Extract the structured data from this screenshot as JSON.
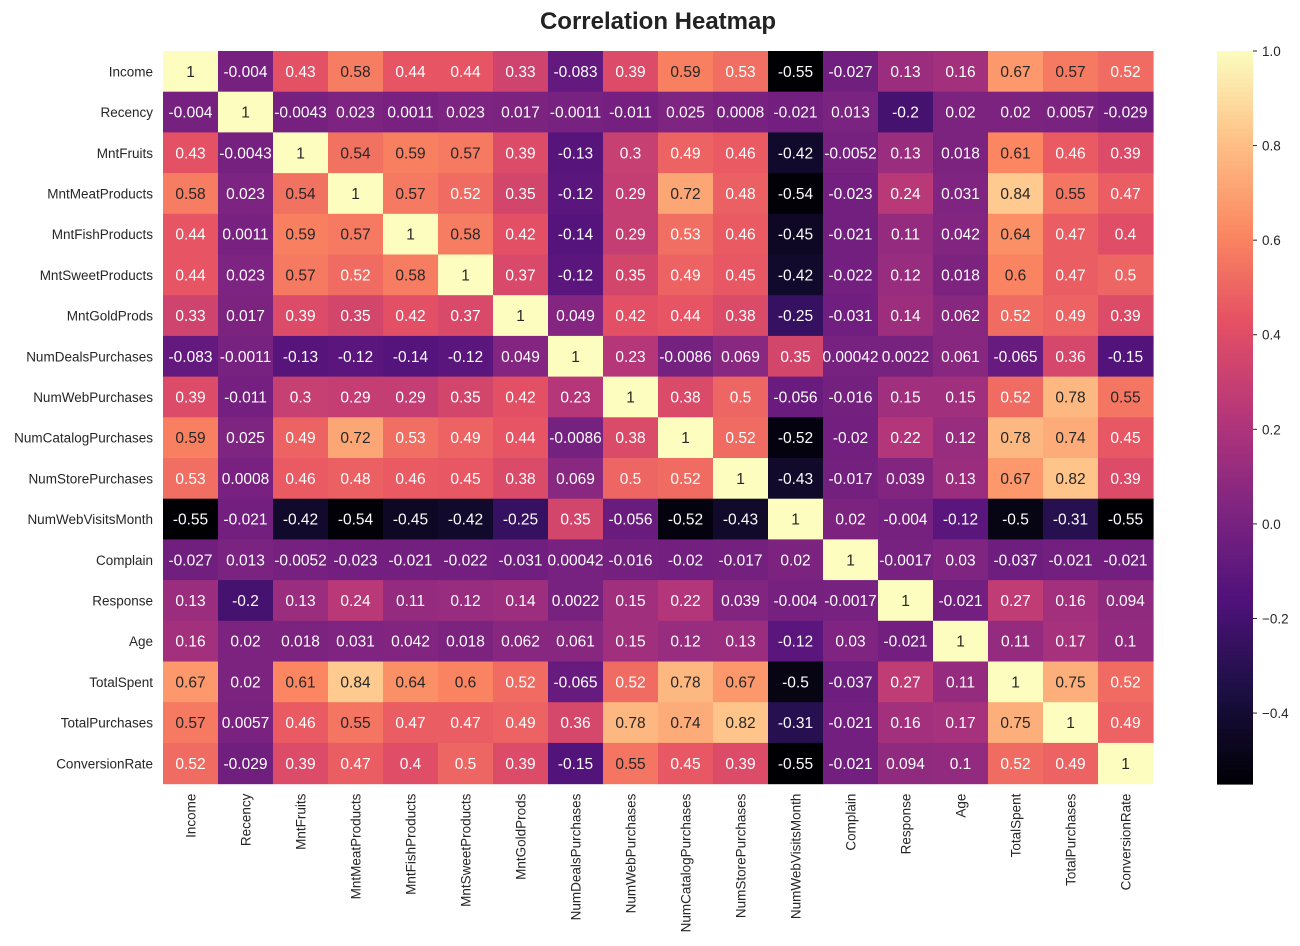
{
  "chart_data": {
    "type": "heatmap",
    "title": "Correlation Heatmap",
    "colormap": "magma",
    "vmin": -0.55,
    "vmax": 1,
    "colorbar_ticks": [
      "1.0",
      "0.8",
      "0.6",
      "0.4",
      "0.2",
      "0.0",
      "−0.2",
      "−0.4"
    ],
    "colorbar_tick_values": [
      1.0,
      0.8,
      0.6,
      0.4,
      0.2,
      0.0,
      -0.2,
      -0.4
    ],
    "labels": [
      "Income",
      "Recency",
      "MntFruits",
      "MntMeatProducts",
      "MntFishProducts",
      "MntSweetProducts",
      "MntGoldProds",
      "NumDealsPurchases",
      "NumWebPurchases",
      "NumCatalogPurchases",
      "NumStorePurchases",
      "NumWebVisitsMonth",
      "Complain",
      "Response",
      "Age",
      "TotalSpent",
      "TotalPurchases",
      "ConversionRate"
    ],
    "matrix": [
      [
        "1",
        "-0.004",
        "0.43",
        "0.58",
        "0.44",
        "0.44",
        "0.33",
        "-0.083",
        "0.39",
        "0.59",
        "0.53",
        "-0.55",
        "-0.027",
        "0.13",
        "0.16",
        "0.67",
        "0.57",
        "0.52"
      ],
      [
        "-0.004",
        "1",
        "-0.0043",
        "0.023",
        "0.0011",
        "0.023",
        "0.017",
        "-0.0011",
        "-0.011",
        "0.025",
        "0.0008",
        "-0.021",
        "0.013",
        "-0.2",
        "0.02",
        "0.02",
        "0.0057",
        "-0.029"
      ],
      [
        "0.43",
        "-0.0043",
        "1",
        "0.54",
        "0.59",
        "0.57",
        "0.39",
        "-0.13",
        "0.3",
        "0.49",
        "0.46",
        "-0.42",
        "-0.0052",
        "0.13",
        "0.018",
        "0.61",
        "0.46",
        "0.39"
      ],
      [
        "0.58",
        "0.023",
        "0.54",
        "1",
        "0.57",
        "0.52",
        "0.35",
        "-0.12",
        "0.29",
        "0.72",
        "0.48",
        "-0.54",
        "-0.023",
        "0.24",
        "0.031",
        "0.84",
        "0.55",
        "0.47"
      ],
      [
        "0.44",
        "0.0011",
        "0.59",
        "0.57",
        "1",
        "0.58",
        "0.42",
        "-0.14",
        "0.29",
        "0.53",
        "0.46",
        "-0.45",
        "-0.021",
        "0.11",
        "0.042",
        "0.64",
        "0.47",
        "0.4"
      ],
      [
        "0.44",
        "0.023",
        "0.57",
        "0.52",
        "0.58",
        "1",
        "0.37",
        "-0.12",
        "0.35",
        "0.49",
        "0.45",
        "-0.42",
        "-0.022",
        "0.12",
        "0.018",
        "0.6",
        "0.47",
        "0.5"
      ],
      [
        "0.33",
        "0.017",
        "0.39",
        "0.35",
        "0.42",
        "0.37",
        "1",
        "0.049",
        "0.42",
        "0.44",
        "0.38",
        "-0.25",
        "-0.031",
        "0.14",
        "0.062",
        "0.52",
        "0.49",
        "0.39"
      ],
      [
        "-0.083",
        "-0.0011",
        "-0.13",
        "-0.12",
        "-0.14",
        "-0.12",
        "0.049",
        "1",
        "0.23",
        "-0.0086",
        "0.069",
        "0.35",
        "0.00042",
        "0.0022",
        "0.061",
        "-0.065",
        "0.36",
        "-0.15"
      ],
      [
        "0.39",
        "-0.011",
        "0.3",
        "0.29",
        "0.29",
        "0.35",
        "0.42",
        "0.23",
        "1",
        "0.38",
        "0.5",
        "-0.056",
        "-0.016",
        "0.15",
        "0.15",
        "0.52",
        "0.78",
        "0.55"
      ],
      [
        "0.59",
        "0.025",
        "0.49",
        "0.72",
        "0.53",
        "0.49",
        "0.44",
        "-0.0086",
        "0.38",
        "1",
        "0.52",
        "-0.52",
        "-0.02",
        "0.22",
        "0.12",
        "0.78",
        "0.74",
        "0.45"
      ],
      [
        "0.53",
        "0.0008",
        "0.46",
        "0.48",
        "0.46",
        "0.45",
        "0.38",
        "0.069",
        "0.5",
        "0.52",
        "1",
        "-0.43",
        "-0.017",
        "0.039",
        "0.13",
        "0.67",
        "0.82",
        "0.39"
      ],
      [
        "-0.55",
        "-0.021",
        "-0.42",
        "-0.54",
        "-0.45",
        "-0.42",
        "-0.25",
        "0.35",
        "-0.056",
        "-0.52",
        "-0.43",
        "1",
        "0.02",
        "-0.004",
        "-0.12",
        "-0.5",
        "-0.31",
        "-0.55"
      ],
      [
        "-0.027",
        "0.013",
        "-0.0052",
        "-0.023",
        "-0.021",
        "-0.022",
        "-0.031",
        "0.00042",
        "-0.016",
        "-0.02",
        "-0.017",
        "0.02",
        "1",
        "-0.0017",
        "0.03",
        "-0.037",
        "-0.021",
        "-0.021"
      ],
      [
        "0.13",
        "-0.2",
        "0.13",
        "0.24",
        "0.11",
        "0.12",
        "0.14",
        "0.0022",
        "0.15",
        "0.22",
        "0.039",
        "-0.004",
        "-0.0017",
        "1",
        "-0.021",
        "0.27",
        "0.16",
        "0.094"
      ],
      [
        "0.16",
        "0.02",
        "0.018",
        "0.031",
        "0.042",
        "0.018",
        "0.062",
        "0.061",
        "0.15",
        "0.12",
        "0.13",
        "-0.12",
        "0.03",
        "-0.021",
        "1",
        "0.11",
        "0.17",
        "0.1"
      ],
      [
        "0.67",
        "0.02",
        "0.61",
        "0.84",
        "0.64",
        "0.6",
        "0.52",
        "-0.065",
        "0.52",
        "0.78",
        "0.67",
        "-0.5",
        "-0.037",
        "0.27",
        "0.11",
        "1",
        "0.75",
        "0.52"
      ],
      [
        "0.57",
        "0.0057",
        "0.46",
        "0.55",
        "0.47",
        "0.47",
        "0.49",
        "0.36",
        "0.78",
        "0.74",
        "0.82",
        "-0.31",
        "-0.021",
        "0.16",
        "0.17",
        "0.75",
        "1",
        "0.49"
      ],
      [
        "0.52",
        "-0.029",
        "0.39",
        "0.47",
        "0.4",
        "0.5",
        "0.39",
        "-0.15",
        "0.55",
        "0.45",
        "0.39",
        "-0.55",
        "-0.021",
        "0.094",
        "0.1",
        "0.52",
        "0.49",
        "1"
      ]
    ]
  }
}
